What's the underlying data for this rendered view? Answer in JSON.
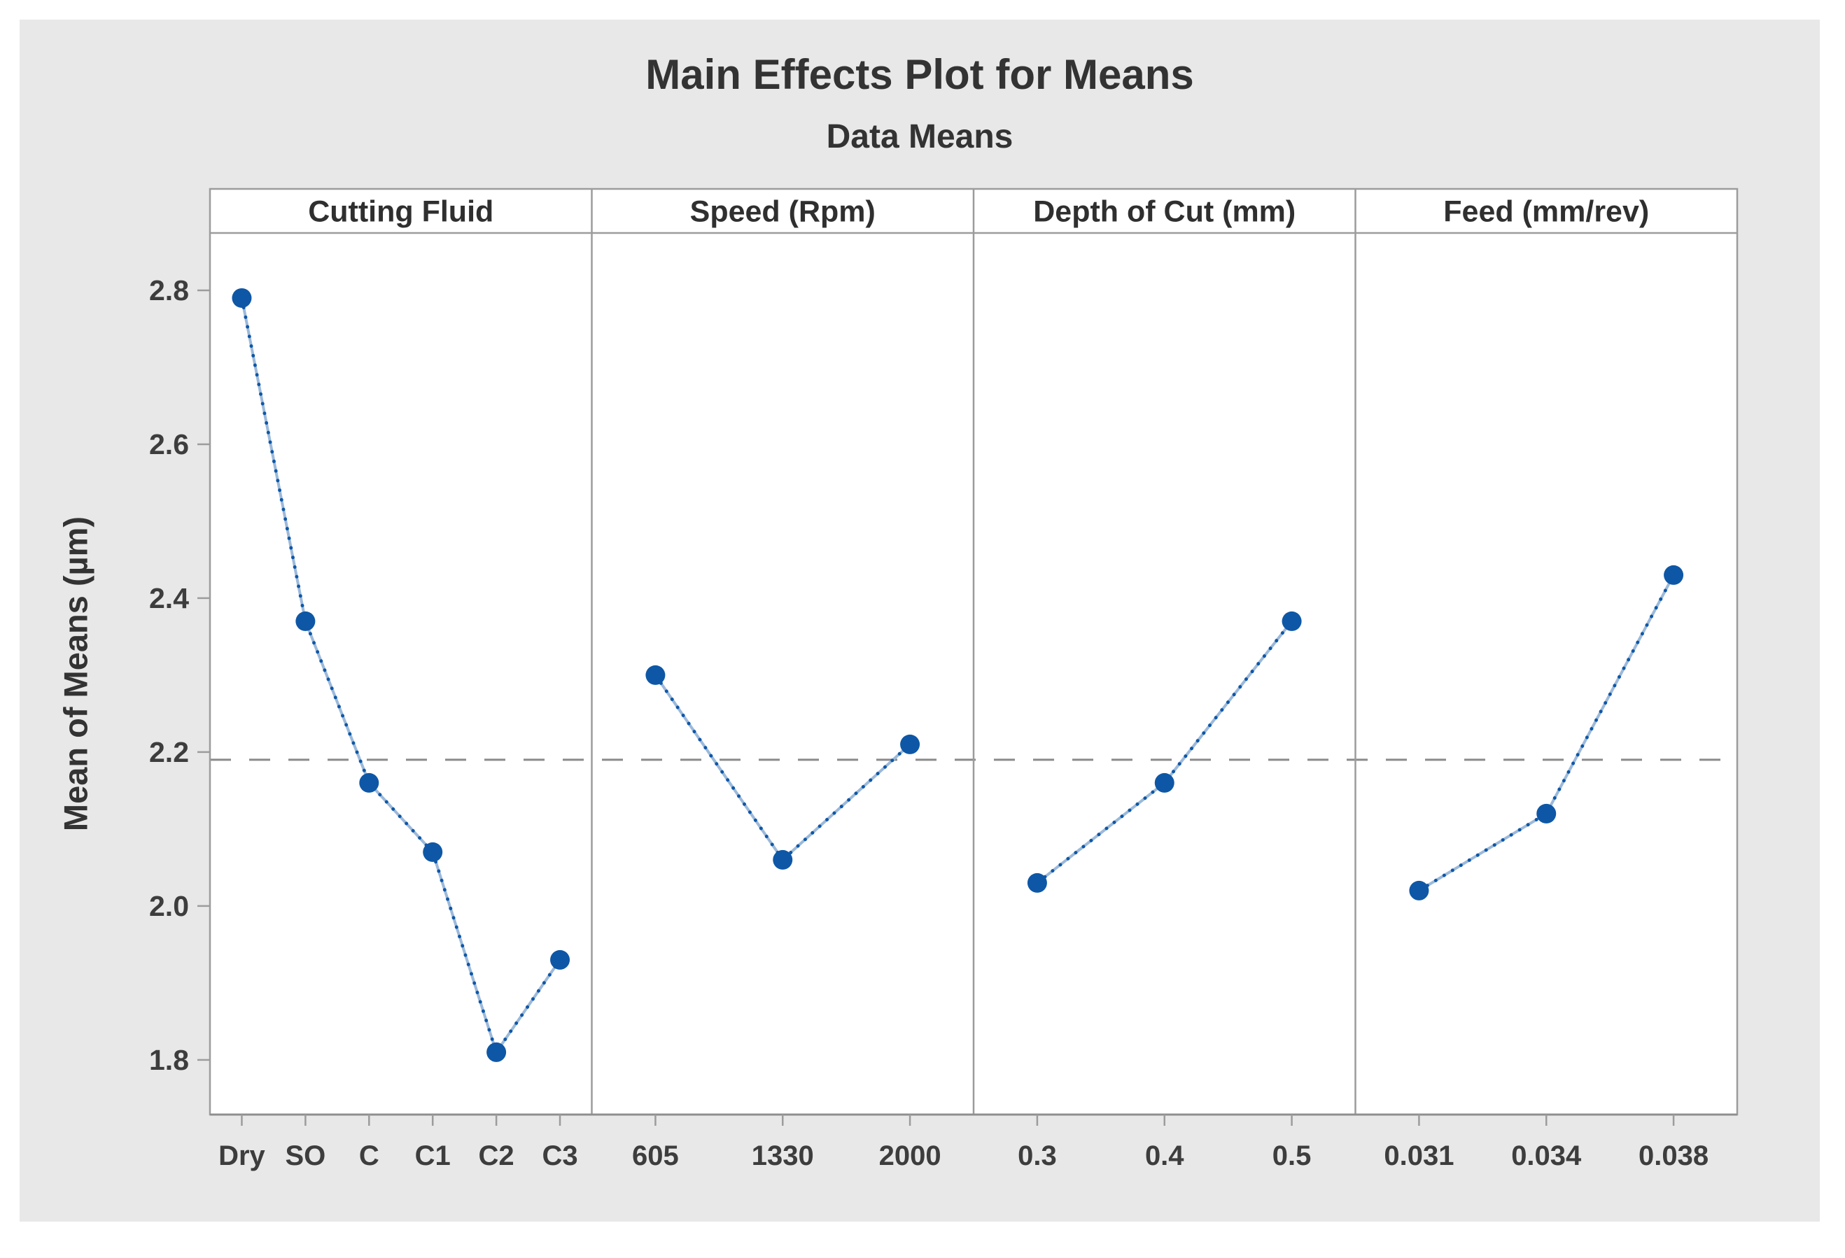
{
  "title": "Main Effects Plot for Means",
  "subtitle": "Data Means",
  "ylabel": "Mean of Means (µm)",
  "colors": {
    "canvas_bg": "#e8e8e8",
    "panel_bg": "#ffffff",
    "frame": "#9c9c9c",
    "axis": "#8f8f8f",
    "tick_text": "#3d3d3d",
    "title_text": "#333333",
    "marker_blue": "#0e57a6",
    "segment_light_blue": "#9cb9da",
    "mean_line_gray": "#8a8a8a"
  },
  "chart_data": {
    "type": "line",
    "title": "Main Effects Plot for Means",
    "subtitle": "Data Means",
    "ylabel": "Mean of Means (µm)",
    "ylim": [
      1.729,
      2.8745
    ],
    "yticks": [
      2.8,
      2.6,
      2.4,
      2.2,
      2.0,
      1.8
    ],
    "ytick_labels": [
      "2.8",
      "2.6",
      "2.4",
      "2.2",
      "2.0",
      "1.8"
    ],
    "grand_mean": 2.19,
    "grid": false,
    "legend": "none",
    "panels": [
      {
        "label": "Cutting Fluid",
        "categories": [
          "Dry",
          "SO",
          "C",
          "C1",
          "C2",
          "C3"
        ],
        "values": [
          2.79,
          2.37,
          2.16,
          2.07,
          1.81,
          1.93
        ]
      },
      {
        "label": "Speed (Rpm)",
        "categories": [
          "605",
          "1330",
          "2000"
        ],
        "values": [
          2.3,
          2.06,
          2.21
        ]
      },
      {
        "label": "Depth of Cut (mm)",
        "categories": [
          "0.3",
          "0.4",
          "0.5"
        ],
        "values": [
          2.03,
          2.16,
          2.37
        ]
      },
      {
        "label": "Feed (mm/rev)",
        "categories": [
          "0.031",
          "0.034",
          "0.038"
        ],
        "values": [
          2.02,
          2.12,
          2.43
        ]
      }
    ]
  }
}
